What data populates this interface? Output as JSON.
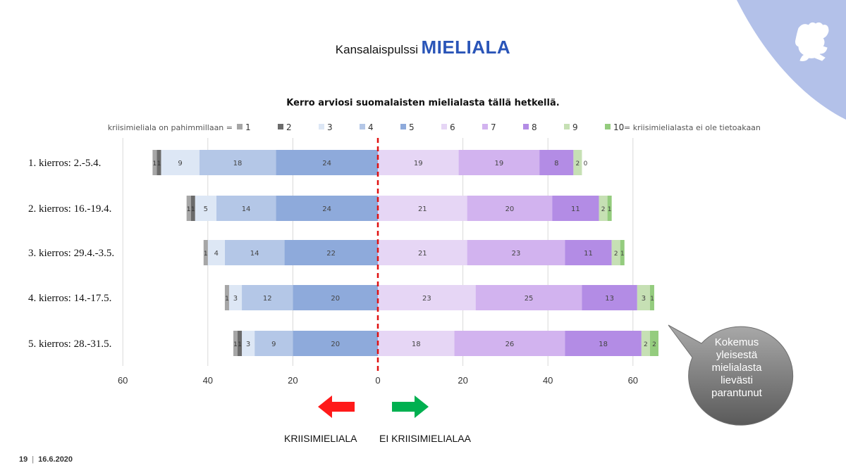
{
  "header": {
    "title_prefix": "Kansalaispulssi",
    "title_main": "MIELIALA"
  },
  "chart_data": {
    "type": "bar",
    "orientation": "horizontal-diverging",
    "stacked": true,
    "title": "Kerro arviosi suomalaisten mielialasta tällä hetkellä.",
    "legend_prefix": "kriisimieliala on pahimmillaan =",
    "legend_suffix": "= kriisimielialasta ei ole tietoakaan",
    "categories": [
      "1. kierros: 2.-5.4.",
      "2. kierros: 16.-19.4.",
      "3. kierros: 29.4.-3.5.",
      "4. kierros: 14.-17.5.",
      "5. kierros: 28.-31.5."
    ],
    "series": [
      {
        "name": "1",
        "color": "#a6a6a6",
        "values": [
          1,
          1,
          1,
          1,
          1
        ]
      },
      {
        "name": "2",
        "color": "#6b6b6b",
        "values": [
          1,
          1,
          0,
          0,
          1
        ]
      },
      {
        "name": "3",
        "color": "#dde7f5",
        "values": [
          9,
          5,
          4,
          3,
          3
        ]
      },
      {
        "name": "4",
        "color": "#b4c7e7",
        "values": [
          18,
          14,
          14,
          12,
          9
        ]
      },
      {
        "name": "5",
        "color": "#8eaadb",
        "values": [
          24,
          24,
          22,
          20,
          20
        ]
      },
      {
        "name": "6",
        "color": "#e6d6f5",
        "values": [
          19,
          21,
          21,
          23,
          18
        ]
      },
      {
        "name": "7",
        "color": "#d2b3ef",
        "values": [
          19,
          20,
          23,
          25,
          26
        ]
      },
      {
        "name": "8",
        "color": "#b38ce5",
        "values": [
          8,
          11,
          11,
          13,
          18
        ]
      },
      {
        "name": "9",
        "color": "#c6e0b4",
        "values": [
          2,
          2,
          2,
          3,
          2
        ]
      },
      {
        "name": "10",
        "color": "#94cc7e",
        "values": [
          0,
          1,
          1,
          1,
          2
        ]
      }
    ],
    "negative_side": [
      "1",
      "2",
      "3",
      "4",
      "5"
    ],
    "positive_side": [
      "6",
      "7",
      "8",
      "9",
      "10"
    ],
    "xticks": [
      "60",
      "40",
      "20",
      "0",
      "20",
      "40",
      "60"
    ],
    "xlim": [
      -60,
      60
    ],
    "grid": true
  },
  "arrows": {
    "left_label": "KRIISIMIELIALA",
    "right_label": "EI KRIISIMIELIALAA",
    "left_color": "#ff1a1a",
    "right_color": "#00b050"
  },
  "callout": {
    "text": "Kokemus yleisestä mielialasta lievästi parantunut"
  },
  "footer": {
    "page": "19",
    "date": "16.6.2020"
  },
  "colors": {
    "corner": "#b3c1e9",
    "title_accent": "#2a55b8",
    "zero_line": "#e01010"
  }
}
